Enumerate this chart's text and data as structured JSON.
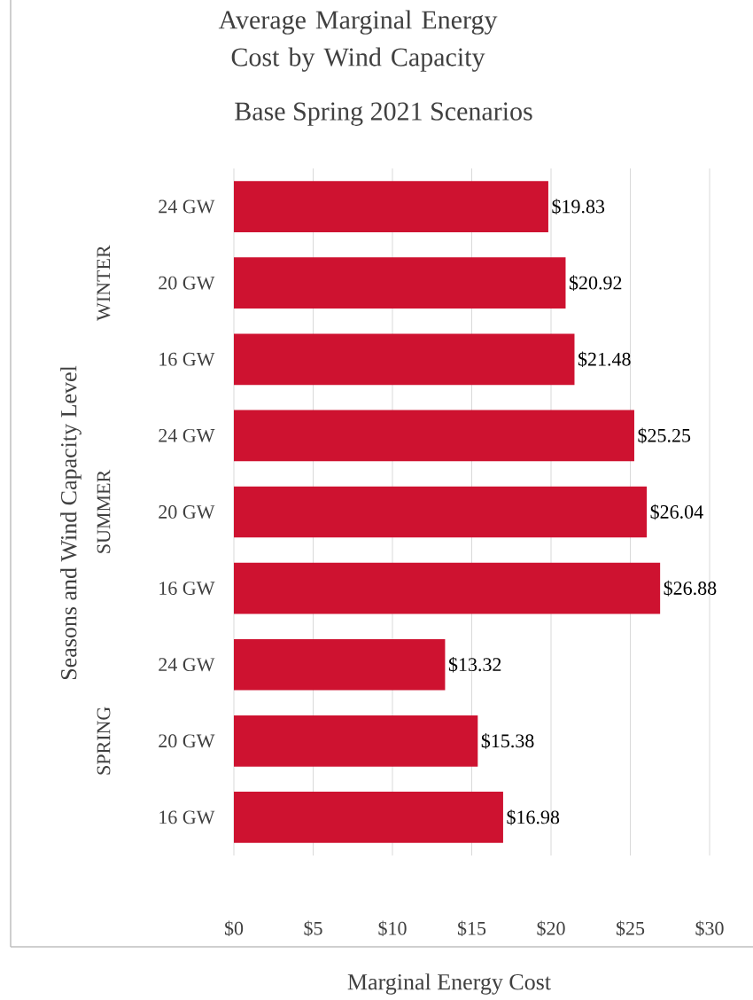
{
  "chart_data": {
    "type": "bar",
    "orientation": "horizontal",
    "title": "Average Marginal Energy Cost by Wind Capacity",
    "subtitle": "Base Spring 2021 Scenarios",
    "xlabel": "Marginal Energy Cost",
    "ylabel": "Seasons and Wind Capacity Level",
    "categories": [
      "24 GW",
      "20 GW",
      "16 GW",
      "24 GW",
      "20 GW",
      "16 GW",
      "24 GW",
      "20 GW",
      "16 GW"
    ],
    "annotations": [
      "WINTER",
      "SUMMER",
      "SPRING"
    ],
    "values": [
      19.83,
      20.92,
      21.48,
      25.25,
      26.04,
      26.88,
      13.32,
      15.38,
      16.98
    ],
    "value_labels": [
      "$19.83",
      "$20.92",
      "$21.48",
      "$25.25",
      "$26.04",
      "$26.88",
      "$13.32",
      "$15.38",
      "$16.98"
    ],
    "color": "#ce1230",
    "xlim": [
      0,
      30
    ],
    "xticks": [
      {
        "value": 0,
        "label": "$0"
      },
      {
        "value": 5,
        "label": "$5"
      },
      {
        "value": 10,
        "label": "$10"
      },
      {
        "value": 15,
        "label": "$15"
      },
      {
        "value": 20,
        "label": "$20"
      },
      {
        "value": 25,
        "label": "$25"
      },
      {
        "value": 30,
        "label": "$30"
      }
    ],
    "grid": "x"
  }
}
